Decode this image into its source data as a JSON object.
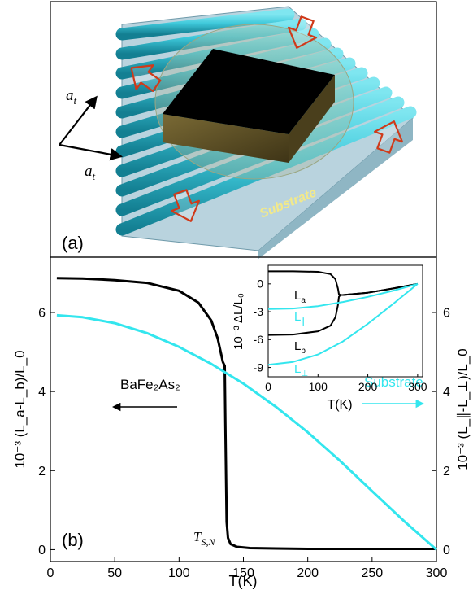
{
  "panel_a": {
    "label": "(a)",
    "axis_label_1": "a",
    "axis_label_1_sub": "t",
    "axis_label_2": "a",
    "axis_label_2_sub": "t",
    "substrate_label": "Substrate",
    "colors": {
      "rod": "#3ec8da",
      "rod_dark": "#1e8fa2",
      "slab_top": "#9fc8d8",
      "sample_top": "#000000",
      "sample_side": "#6b5a2a",
      "arrow_outline": "#d03a1a",
      "substrate_text": "#f2e98a"
    },
    "icons": [
      "compression-arrow-icon",
      "axis-arrow-icon"
    ]
  },
  "panel_b": {
    "label": "(b)",
    "xlabel": "T(K)",
    "ylabel_left": "10⁻³ (L_a-L_b)/L_0",
    "ylabel_right": "10⁻³ (L_∥-L_⊥)/L_0",
    "annotation_sample": "BaFe₂As₂",
    "annotation_substrate": "Substrate",
    "annotation_transition": "T",
    "annotation_transition_sub": "S,N",
    "inset": {
      "xlabel": "T(K)",
      "ylabel": "10⁻³ ΔL/L₀",
      "legend": [
        "L_a",
        "L_∥",
        "L_b",
        "L_⊥"
      ]
    }
  },
  "chart_data": [
    {
      "type": "line",
      "title": "",
      "xlabel": "T(K)",
      "ylabel": "10^-3 (L_a-L_b)/L_0",
      "y2label": "10^-3 (L_∥-L_⊥)/L_0",
      "xlim": [
        0,
        300
      ],
      "ylim": [
        -0.3,
        7.4
      ],
      "xticks": [
        0,
        50,
        100,
        150,
        200,
        250,
        300
      ],
      "yticks": [
        0,
        2,
        4,
        6
      ],
      "grid": false,
      "series": [
        {
          "name": "BaFe2As2",
          "color": "#000000",
          "x": [
            5,
            25,
            50,
            75,
            100,
            115,
            125,
            130,
            134,
            135.5,
            136,
            137,
            138,
            140,
            145,
            155,
            175,
            200,
            250,
            300
          ],
          "y": [
            6.87,
            6.86,
            6.82,
            6.75,
            6.55,
            6.25,
            5.8,
            5.35,
            4.75,
            4.65,
            3.2,
            0.7,
            0.3,
            0.14,
            0.07,
            0.04,
            0.03,
            0.02,
            0.02,
            0.02
          ]
        },
        {
          "name": "Substrate",
          "color": "#33e6ee",
          "x": [
            5,
            25,
            50,
            75,
            100,
            125,
            150,
            175,
            200,
            225,
            250,
            275,
            300
          ],
          "y": [
            5.93,
            5.88,
            5.73,
            5.48,
            5.13,
            4.7,
            4.2,
            3.62,
            2.97,
            2.25,
            1.48,
            0.72,
            0.0
          ]
        }
      ]
    },
    {
      "type": "line",
      "title": "",
      "xlabel": "T(K)",
      "ylabel": "10^-3 ΔL/L_0",
      "xlim": [
        0,
        310
      ],
      "ylim": [
        -10,
        2
      ],
      "xticks": [
        0,
        100,
        200,
        300
      ],
      "yticks": [
        -9,
        -6,
        -3,
        0
      ],
      "series": [
        {
          "name": "L_a",
          "color": "#000000",
          "x": [
            0,
            50,
            100,
            125,
            135,
            140,
            142,
            145,
            150,
            200,
            250,
            300
          ],
          "y": [
            1.35,
            1.35,
            1.3,
            1.05,
            0.5,
            -0.5,
            -1.1,
            -1.2,
            -1.2,
            -0.95,
            -0.5,
            0.0
          ]
        },
        {
          "name": "L_b",
          "color": "#000000",
          "x": [
            0,
            50,
            100,
            125,
            135,
            140,
            142,
            145,
            150,
            200,
            250,
            300
          ],
          "y": [
            -5.5,
            -5.45,
            -5.1,
            -4.5,
            -3.6,
            -2.3,
            -1.4,
            -1.2,
            -1.2,
            -0.95,
            -0.5,
            0.0
          ]
        },
        {
          "name": "L_∥",
          "color": "#33e6ee",
          "x": [
            0,
            50,
            100,
            150,
            200,
            250,
            300
          ],
          "y": [
            -2.7,
            -2.65,
            -2.4,
            -1.95,
            -1.4,
            -0.75,
            0.0
          ]
        },
        {
          "name": "L_⊥",
          "color": "#33e6ee",
          "x": [
            0,
            50,
            100,
            150,
            200,
            250,
            300
          ],
          "y": [
            -8.7,
            -8.4,
            -7.6,
            -6.2,
            -4.3,
            -2.2,
            0.0
          ]
        }
      ]
    }
  ]
}
